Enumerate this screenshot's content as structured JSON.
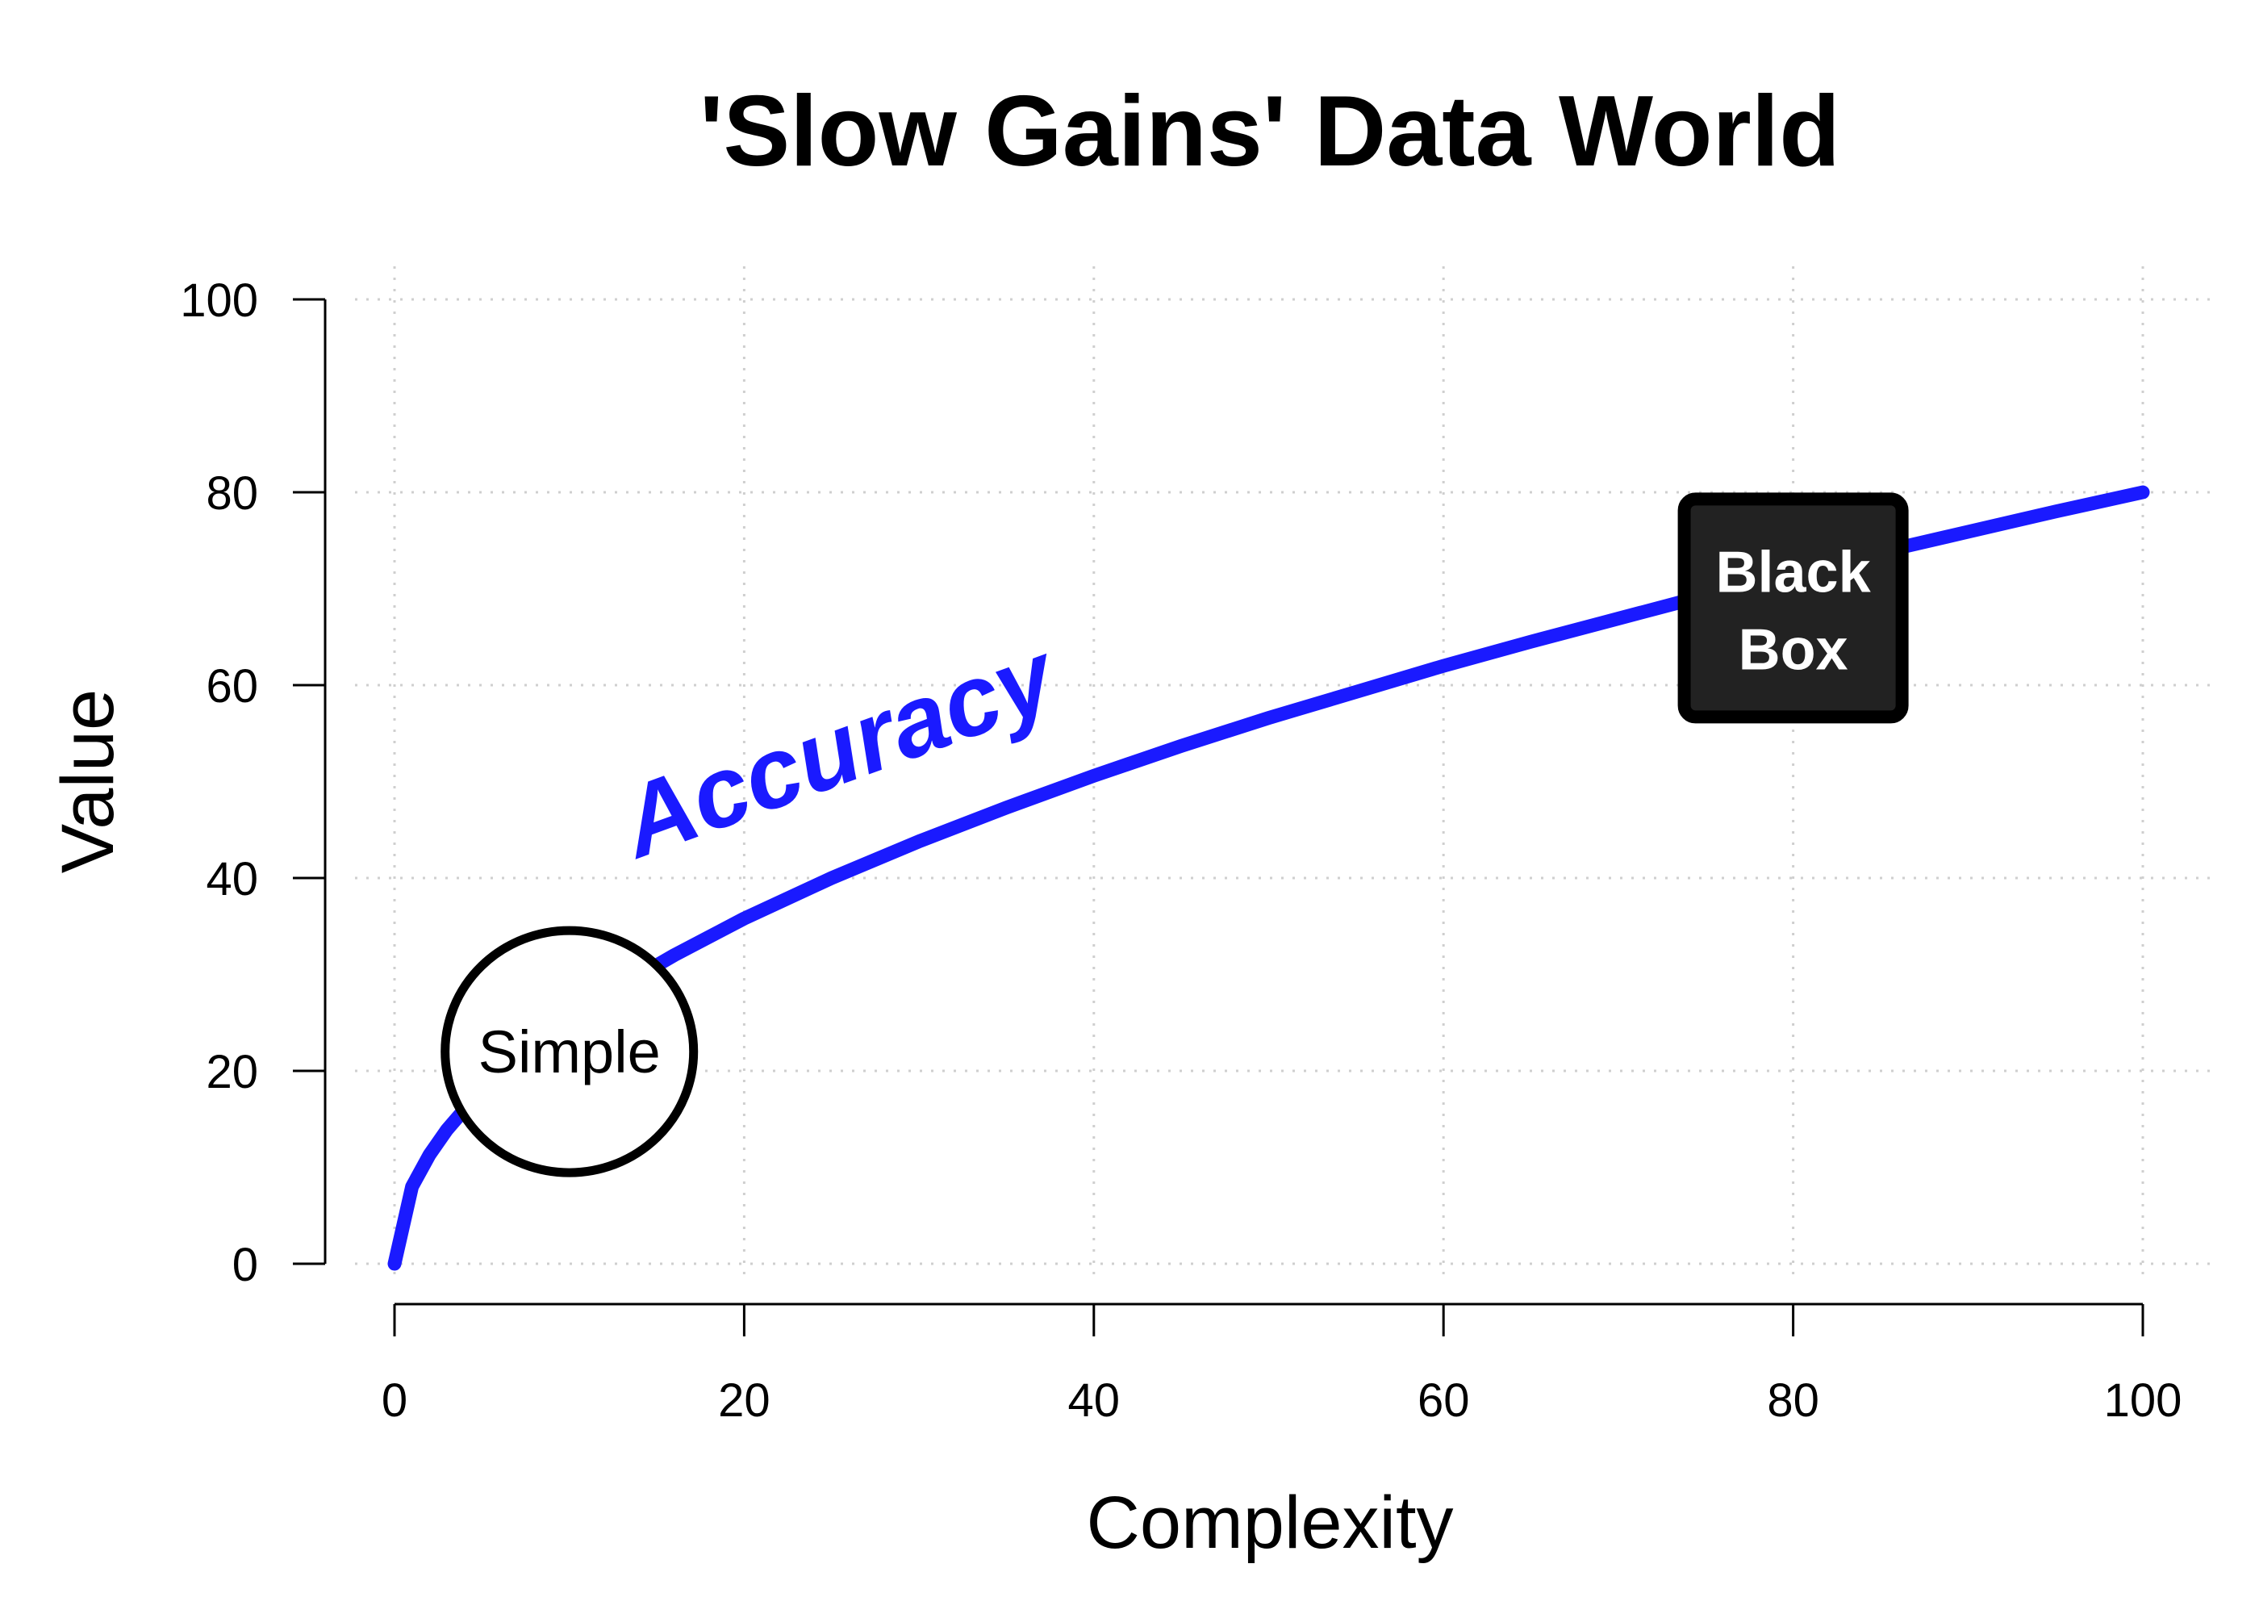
{
  "chart_data": {
    "type": "line",
    "title": "'Slow Gains' Data World",
    "xlabel": "Complexity",
    "ylabel": "Value",
    "xlim": [
      0,
      100
    ],
    "ylim": [
      0,
      100
    ],
    "x_ticks": [
      0,
      20,
      40,
      60,
      80,
      100
    ],
    "y_ticks": [
      0,
      20,
      40,
      60,
      80,
      100
    ],
    "x_tick_labels": [
      "0",
      "20",
      "40",
      "60",
      "80",
      "100"
    ],
    "y_tick_labels": [
      "0",
      "20",
      "40",
      "60",
      "80",
      "100"
    ],
    "grid": true,
    "series": [
      {
        "name": "Accuracy",
        "color": "#1a1aff",
        "x": [
          0,
          1,
          2,
          3,
          4,
          5,
          6,
          7,
          8,
          9,
          10,
          12,
          14,
          16,
          18,
          20,
          25,
          30,
          35,
          40,
          45,
          50,
          55,
          60,
          65,
          70,
          75,
          80,
          85,
          90,
          95,
          100
        ],
        "y": [
          0,
          8,
          11.3,
          13.9,
          16,
          17.9,
          19.6,
          21.2,
          22.6,
          24,
          25.3,
          27.7,
          29.9,
          32,
          33.9,
          35.8,
          40,
          43.8,
          47.3,
          50.6,
          53.7,
          56.6,
          59.3,
          62,
          64.5,
          66.9,
          69.3,
          71.6,
          73.8,
          75.9,
          78,
          80
        ]
      }
    ],
    "annotations": [
      {
        "text": "Accuracy",
        "x": 26,
        "y": 50,
        "angle_deg": -20,
        "color": "#1a1aff",
        "style": "curve-label"
      },
      {
        "text": "Simple",
        "x": 10,
        "y": 22,
        "style": "circle"
      },
      {
        "text_lines": [
          "Black",
          "Box"
        ],
        "x": 80,
        "y": 68,
        "style": "dark-box"
      }
    ]
  }
}
